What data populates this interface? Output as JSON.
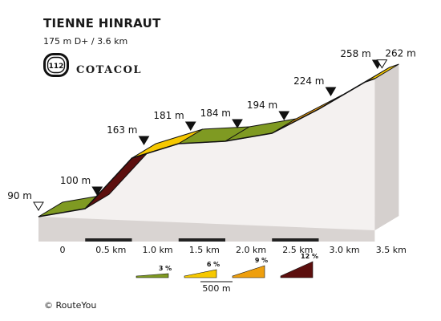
{
  "header": {
    "title": "TIENNE HINRAUT",
    "subtitle": "175 m D+ / 3.6 km",
    "badge_number": "112",
    "brand": "COTACOL",
    "badge_icon": "cotacol-badge-icon"
  },
  "footer": {
    "copyright": "© RouteYou"
  },
  "chart_data": {
    "type": "area",
    "title": "TIENNE HINRAUT",
    "xlabel": "",
    "ylabel": "",
    "x_unit": "km",
    "y_unit": "m",
    "xlim": [
      0,
      3.6
    ],
    "ylim": [
      80,
      270
    ],
    "grid": false,
    "x_ticks": [
      {
        "x": 0,
        "label": "0"
      },
      {
        "x": 0.5,
        "label": "0.5 km"
      },
      {
        "x": 1.0,
        "label": "1.0 km"
      },
      {
        "x": 1.5,
        "label": "1.5 km"
      },
      {
        "x": 2.0,
        "label": "2.0 km"
      },
      {
        "x": 2.5,
        "label": "2.5 km"
      },
      {
        "x": 3.0,
        "label": "3.0 km"
      },
      {
        "x": 3.5,
        "label": "3.5 km"
      }
    ],
    "profile": [
      {
        "x": 0.0,
        "y": 90,
        "label": "90 m",
        "marker": "start"
      },
      {
        "x": 0.5,
        "y": 100,
        "label": "100 m",
        "marker": "point"
      },
      {
        "x": 1.0,
        "y": 163,
        "label": "163 m",
        "marker": "point"
      },
      {
        "x": 1.5,
        "y": 181,
        "label": "181 m",
        "marker": "point"
      },
      {
        "x": 2.0,
        "y": 184,
        "label": "184 m",
        "marker": "point"
      },
      {
        "x": 2.5,
        "y": 194,
        "label": "194 m",
        "marker": "point"
      },
      {
        "x": 3.0,
        "y": 224,
        "label": "224 m",
        "marker": "point"
      },
      {
        "x": 3.5,
        "y": 258,
        "label": "258 m",
        "marker": "point"
      },
      {
        "x": 3.6,
        "y": 262,
        "label": "262 m",
        "marker": "end"
      }
    ],
    "segments": [
      {
        "x0": 0.0,
        "x1": 0.5,
        "y0": 90,
        "y1": 100,
        "grade": 3
      },
      {
        "x0": 0.5,
        "x1": 1.0,
        "y0": 100,
        "y1": 163,
        "grade": 12
      },
      {
        "x0": 1.0,
        "x1": 1.5,
        "y0": 163,
        "y1": 181,
        "grade": 6
      },
      {
        "x0": 1.5,
        "x1": 2.0,
        "y0": 181,
        "y1": 184,
        "grade": 3
      },
      {
        "x0": 2.0,
        "x1": 2.5,
        "y0": 184,
        "y1": 194,
        "grade": 3
      },
      {
        "x0": 2.5,
        "x1": 3.0,
        "y0": 194,
        "y1": 224,
        "grade": 9
      },
      {
        "x0": 3.0,
        "x1": 3.5,
        "y0": 224,
        "y1": 258,
        "grade": 9
      },
      {
        "x0": 3.5,
        "x1": 3.6,
        "y0": 258,
        "y1": 262,
        "grade": 6
      }
    ],
    "legend": {
      "placement": "bottom-center",
      "items": [
        {
          "grade": 3,
          "label": "3 %",
          "color": "#7f9a22"
        },
        {
          "grade": 6,
          "label": "6 %",
          "color": "#f6c800"
        },
        {
          "grade": 9,
          "label": "9 %",
          "color": "#ee9f0e"
        },
        {
          "grade": 12,
          "label": "12 %",
          "color": "#5c0f0e"
        }
      ],
      "extra_color": "#cf2d2d",
      "scale_label": "500 m"
    },
    "colors": {
      "side": "#e8e3e1",
      "base": "#d9d4d2",
      "base_dark": "#222222",
      "outline": "#111111"
    }
  }
}
